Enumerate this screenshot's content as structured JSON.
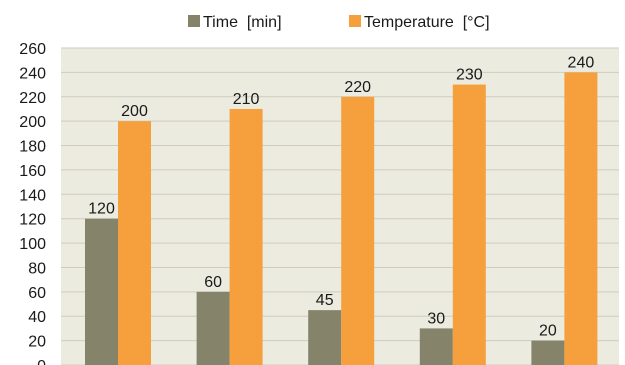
{
  "chart_data": {
    "type": "bar",
    "categories": [
      "",
      "",
      "",
      "",
      ""
    ],
    "series": [
      {
        "name": "Time  [min]",
        "values": [
          120,
          60,
          45,
          30,
          20
        ],
        "color": "#85836a"
      },
      {
        "name": "Temperature  [°C]",
        "values": [
          200,
          210,
          220,
          230,
          240
        ],
        "color": "#f5a03c"
      }
    ],
    "title": "",
    "xlabel": "",
    "ylabel": "",
    "ylim": [
      0,
      260
    ],
    "yticks": [
      0,
      20,
      40,
      60,
      80,
      100,
      120,
      140,
      160,
      180,
      200,
      220,
      240,
      260
    ],
    "grid": true,
    "legend": "top-center",
    "plot_background": "#ecebe0"
  }
}
